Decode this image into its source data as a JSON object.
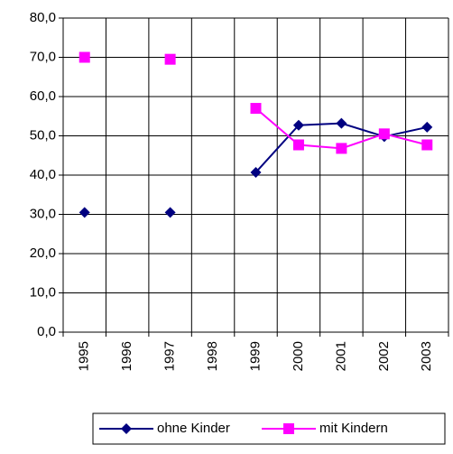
{
  "chart_data": {
    "type": "line",
    "categories": [
      "1995",
      "1996",
      "1997",
      "1998",
      "1999",
      "2000",
      "2001",
      "2002",
      "2003"
    ],
    "series": [
      {
        "name": "ohne Kinder",
        "color": "#000080",
        "marker": "diamond",
        "values": [
          30.5,
          null,
          30.5,
          null,
          40.7,
          52.7,
          53.2,
          49.8,
          52.2
        ]
      },
      {
        "name": "mit Kindern",
        "color": "#ff00ff",
        "marker": "square",
        "values": [
          70.0,
          null,
          69.5,
          null,
          57.0,
          47.7,
          46.8,
          50.5,
          47.7
        ]
      }
    ],
    "ylim": [
      0,
      80
    ],
    "yticks": [
      {
        "value": 0,
        "label": "0,0"
      },
      {
        "value": 10,
        "label": "10,0"
      },
      {
        "value": 20,
        "label": "20,0"
      },
      {
        "value": 30,
        "label": "30,0"
      },
      {
        "value": 40,
        "label": "40,0"
      },
      {
        "value": 50,
        "label": "50,0"
      },
      {
        "value": 60,
        "label": "60,0"
      },
      {
        "value": 70,
        "label": "70,0"
      },
      {
        "value": 80,
        "label": "80,0"
      }
    ],
    "grid": true
  }
}
